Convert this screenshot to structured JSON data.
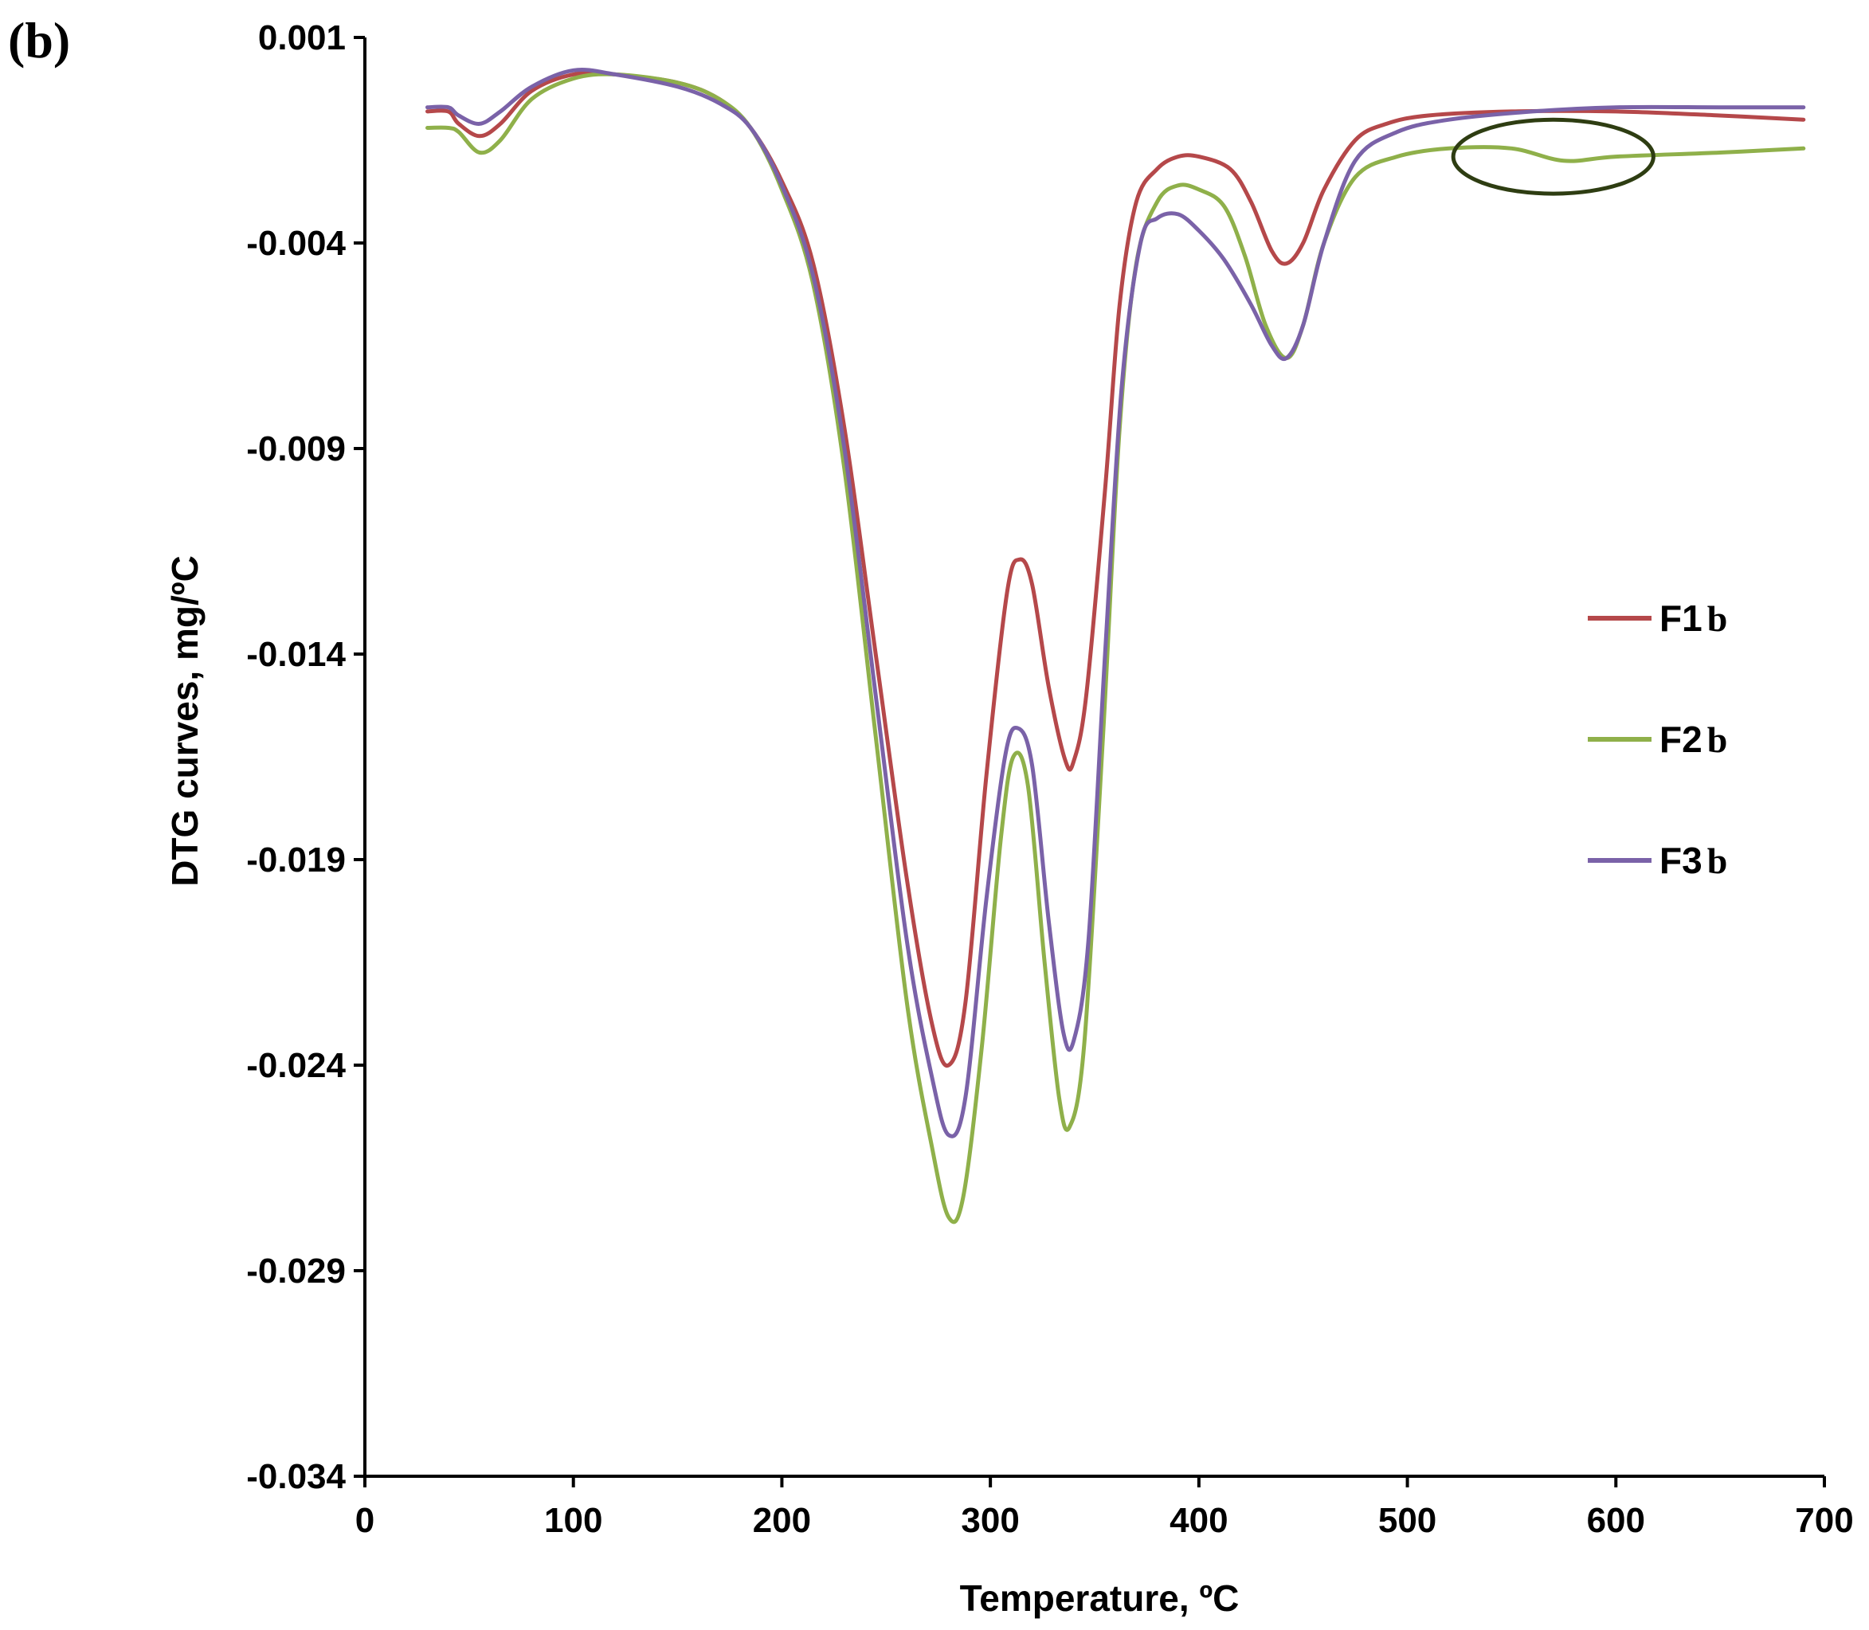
{
  "panel_label": "(b)",
  "chart_data": {
    "type": "line",
    "title": "",
    "xlabel": "Temperature, ºC",
    "ylabel": "DTG curves, mg/ºC",
    "xlim": [
      0,
      700
    ],
    "ylim": [
      -0.034,
      0.001
    ],
    "x_ticks": [
      0,
      100,
      200,
      300,
      400,
      500,
      600,
      700
    ],
    "x_tick_labels": [
      "0",
      "100",
      "200",
      "300",
      "400",
      "500",
      "600",
      "700"
    ],
    "y_ticks": [
      0.001,
      -0.004,
      -0.009,
      -0.014,
      -0.019,
      -0.024,
      -0.029,
      -0.034
    ],
    "y_tick_labels": [
      "0.001",
      "-0.004",
      "-0.009",
      "-0.014",
      "-0.019",
      "-0.024",
      "-0.029",
      "-0.034"
    ],
    "grid": false,
    "legend_position": "right",
    "series": [
      {
        "name": "F1",
        "name_sub": "b",
        "color": "#b5484a",
        "points": [
          [
            30,
            -0.0008
          ],
          [
            40,
            -0.0008
          ],
          [
            45,
            -0.0011
          ],
          [
            55,
            -0.0014
          ],
          [
            65,
            -0.0011
          ],
          [
            80,
            -0.0003
          ],
          [
            100,
            0.0001
          ],
          [
            120,
            0.0001
          ],
          [
            150,
            -0.0001
          ],
          [
            170,
            -0.0005
          ],
          [
            185,
            -0.0012
          ],
          [
            200,
            -0.0025
          ],
          [
            215,
            -0.0045
          ],
          [
            230,
            -0.0085
          ],
          [
            245,
            -0.014
          ],
          [
            260,
            -0.0195
          ],
          [
            272,
            -0.023
          ],
          [
            280,
            -0.024
          ],
          [
            288,
            -0.0225
          ],
          [
            298,
            -0.017
          ],
          [
            308,
            -0.0125
          ],
          [
            314,
            -0.0117
          ],
          [
            320,
            -0.0123
          ],
          [
            328,
            -0.0148
          ],
          [
            336,
            -0.0166
          ],
          [
            340,
            -0.0166
          ],
          [
            346,
            -0.015
          ],
          [
            355,
            -0.01
          ],
          [
            362,
            -0.0055
          ],
          [
            370,
            -0.003
          ],
          [
            380,
            -0.0022
          ],
          [
            390,
            -0.0019
          ],
          [
            400,
            -0.0019
          ],
          [
            415,
            -0.0022
          ],
          [
            425,
            -0.003
          ],
          [
            435,
            -0.0042
          ],
          [
            442,
            -0.0045
          ],
          [
            450,
            -0.004
          ],
          [
            460,
            -0.0027
          ],
          [
            475,
            -0.0015
          ],
          [
            490,
            -0.0011
          ],
          [
            510,
            -0.0009
          ],
          [
            550,
            -0.0008
          ],
          [
            600,
            -0.0008
          ],
          [
            650,
            -0.0009
          ],
          [
            690,
            -0.001
          ]
        ]
      },
      {
        "name": "F2",
        "name_sub": "b",
        "color": "#8fb04a",
        "points": [
          [
            30,
            -0.0012
          ],
          [
            40,
            -0.0012
          ],
          [
            45,
            -0.0013
          ],
          [
            55,
            -0.0018
          ],
          [
            65,
            -0.0015
          ],
          [
            80,
            -0.0005
          ],
          [
            100,
            0.0
          ],
          [
            120,
            0.0001
          ],
          [
            150,
            -0.0001
          ],
          [
            170,
            -0.0005
          ],
          [
            185,
            -0.0012
          ],
          [
            200,
            -0.0027
          ],
          [
            215,
            -0.005
          ],
          [
            230,
            -0.0095
          ],
          [
            245,
            -0.016
          ],
          [
            260,
            -0.0225
          ],
          [
            272,
            -0.026
          ],
          [
            280,
            -0.0277
          ],
          [
            287,
            -0.0272
          ],
          [
            296,
            -0.0235
          ],
          [
            305,
            -0.0185
          ],
          [
            311,
            -0.0165
          ],
          [
            318,
            -0.0172
          ],
          [
            326,
            -0.0215
          ],
          [
            333,
            -0.0248
          ],
          [
            338,
            -0.0255
          ],
          [
            345,
            -0.0235
          ],
          [
            354,
            -0.016
          ],
          [
            362,
            -0.0085
          ],
          [
            370,
            -0.0045
          ],
          [
            380,
            -0.003
          ],
          [
            390,
            -0.0026
          ],
          [
            400,
            -0.0027
          ],
          [
            412,
            -0.0031
          ],
          [
            422,
            -0.0043
          ],
          [
            432,
            -0.006
          ],
          [
            442,
            -0.0068
          ],
          [
            450,
            -0.006
          ],
          [
            460,
            -0.004
          ],
          [
            475,
            -0.0024
          ],
          [
            495,
            -0.0019
          ],
          [
            520,
            -0.0017
          ],
          [
            550,
            -0.0017
          ],
          [
            575,
            -0.002
          ],
          [
            600,
            -0.0019
          ],
          [
            650,
            -0.0018
          ],
          [
            690,
            -0.0017
          ]
        ]
      },
      {
        "name": "F3",
        "name_sub": "b",
        "color": "#7a62a8",
        "points": [
          [
            30,
            -0.0007
          ],
          [
            40,
            -0.0007
          ],
          [
            45,
            -0.0009
          ],
          [
            55,
            -0.0011
          ],
          [
            65,
            -0.0008
          ],
          [
            80,
            -0.0002
          ],
          [
            100,
            0.0002
          ],
          [
            120,
            0.0001
          ],
          [
            150,
            -0.0002
          ],
          [
            170,
            -0.0006
          ],
          [
            185,
            -0.0012
          ],
          [
            200,
            -0.0026
          ],
          [
            215,
            -0.0048
          ],
          [
            230,
            -0.009
          ],
          [
            245,
            -0.015
          ],
          [
            260,
            -0.021
          ],
          [
            272,
            -0.0243
          ],
          [
            280,
            -0.0257
          ],
          [
            288,
            -0.0248
          ],
          [
            298,
            -0.02
          ],
          [
            307,
            -0.0165
          ],
          [
            313,
            -0.0158
          ],
          [
            320,
            -0.0167
          ],
          [
            328,
            -0.0205
          ],
          [
            335,
            -0.0232
          ],
          [
            340,
            -0.0234
          ],
          [
            347,
            -0.021
          ],
          [
            355,
            -0.014
          ],
          [
            363,
            -0.0075
          ],
          [
            372,
            -0.004
          ],
          [
            380,
            -0.0034
          ],
          [
            390,
            -0.0033
          ],
          [
            400,
            -0.0037
          ],
          [
            412,
            -0.0044
          ],
          [
            425,
            -0.0055
          ],
          [
            435,
            -0.0065
          ],
          [
            442,
            -0.0068
          ],
          [
            450,
            -0.006
          ],
          [
            460,
            -0.004
          ],
          [
            475,
            -0.002
          ],
          [
            495,
            -0.0013
          ],
          [
            520,
            -0.001
          ],
          [
            560,
            -0.0008
          ],
          [
            600,
            -0.0007
          ],
          [
            650,
            -0.0007
          ],
          [
            690,
            -0.0007
          ]
        ]
      }
    ],
    "annotations": [
      {
        "type": "ellipse",
        "cx": 570,
        "cy": -0.0019,
        "rx": 48,
        "ry": 0.0009,
        "color": "#2e3d12"
      }
    ]
  }
}
